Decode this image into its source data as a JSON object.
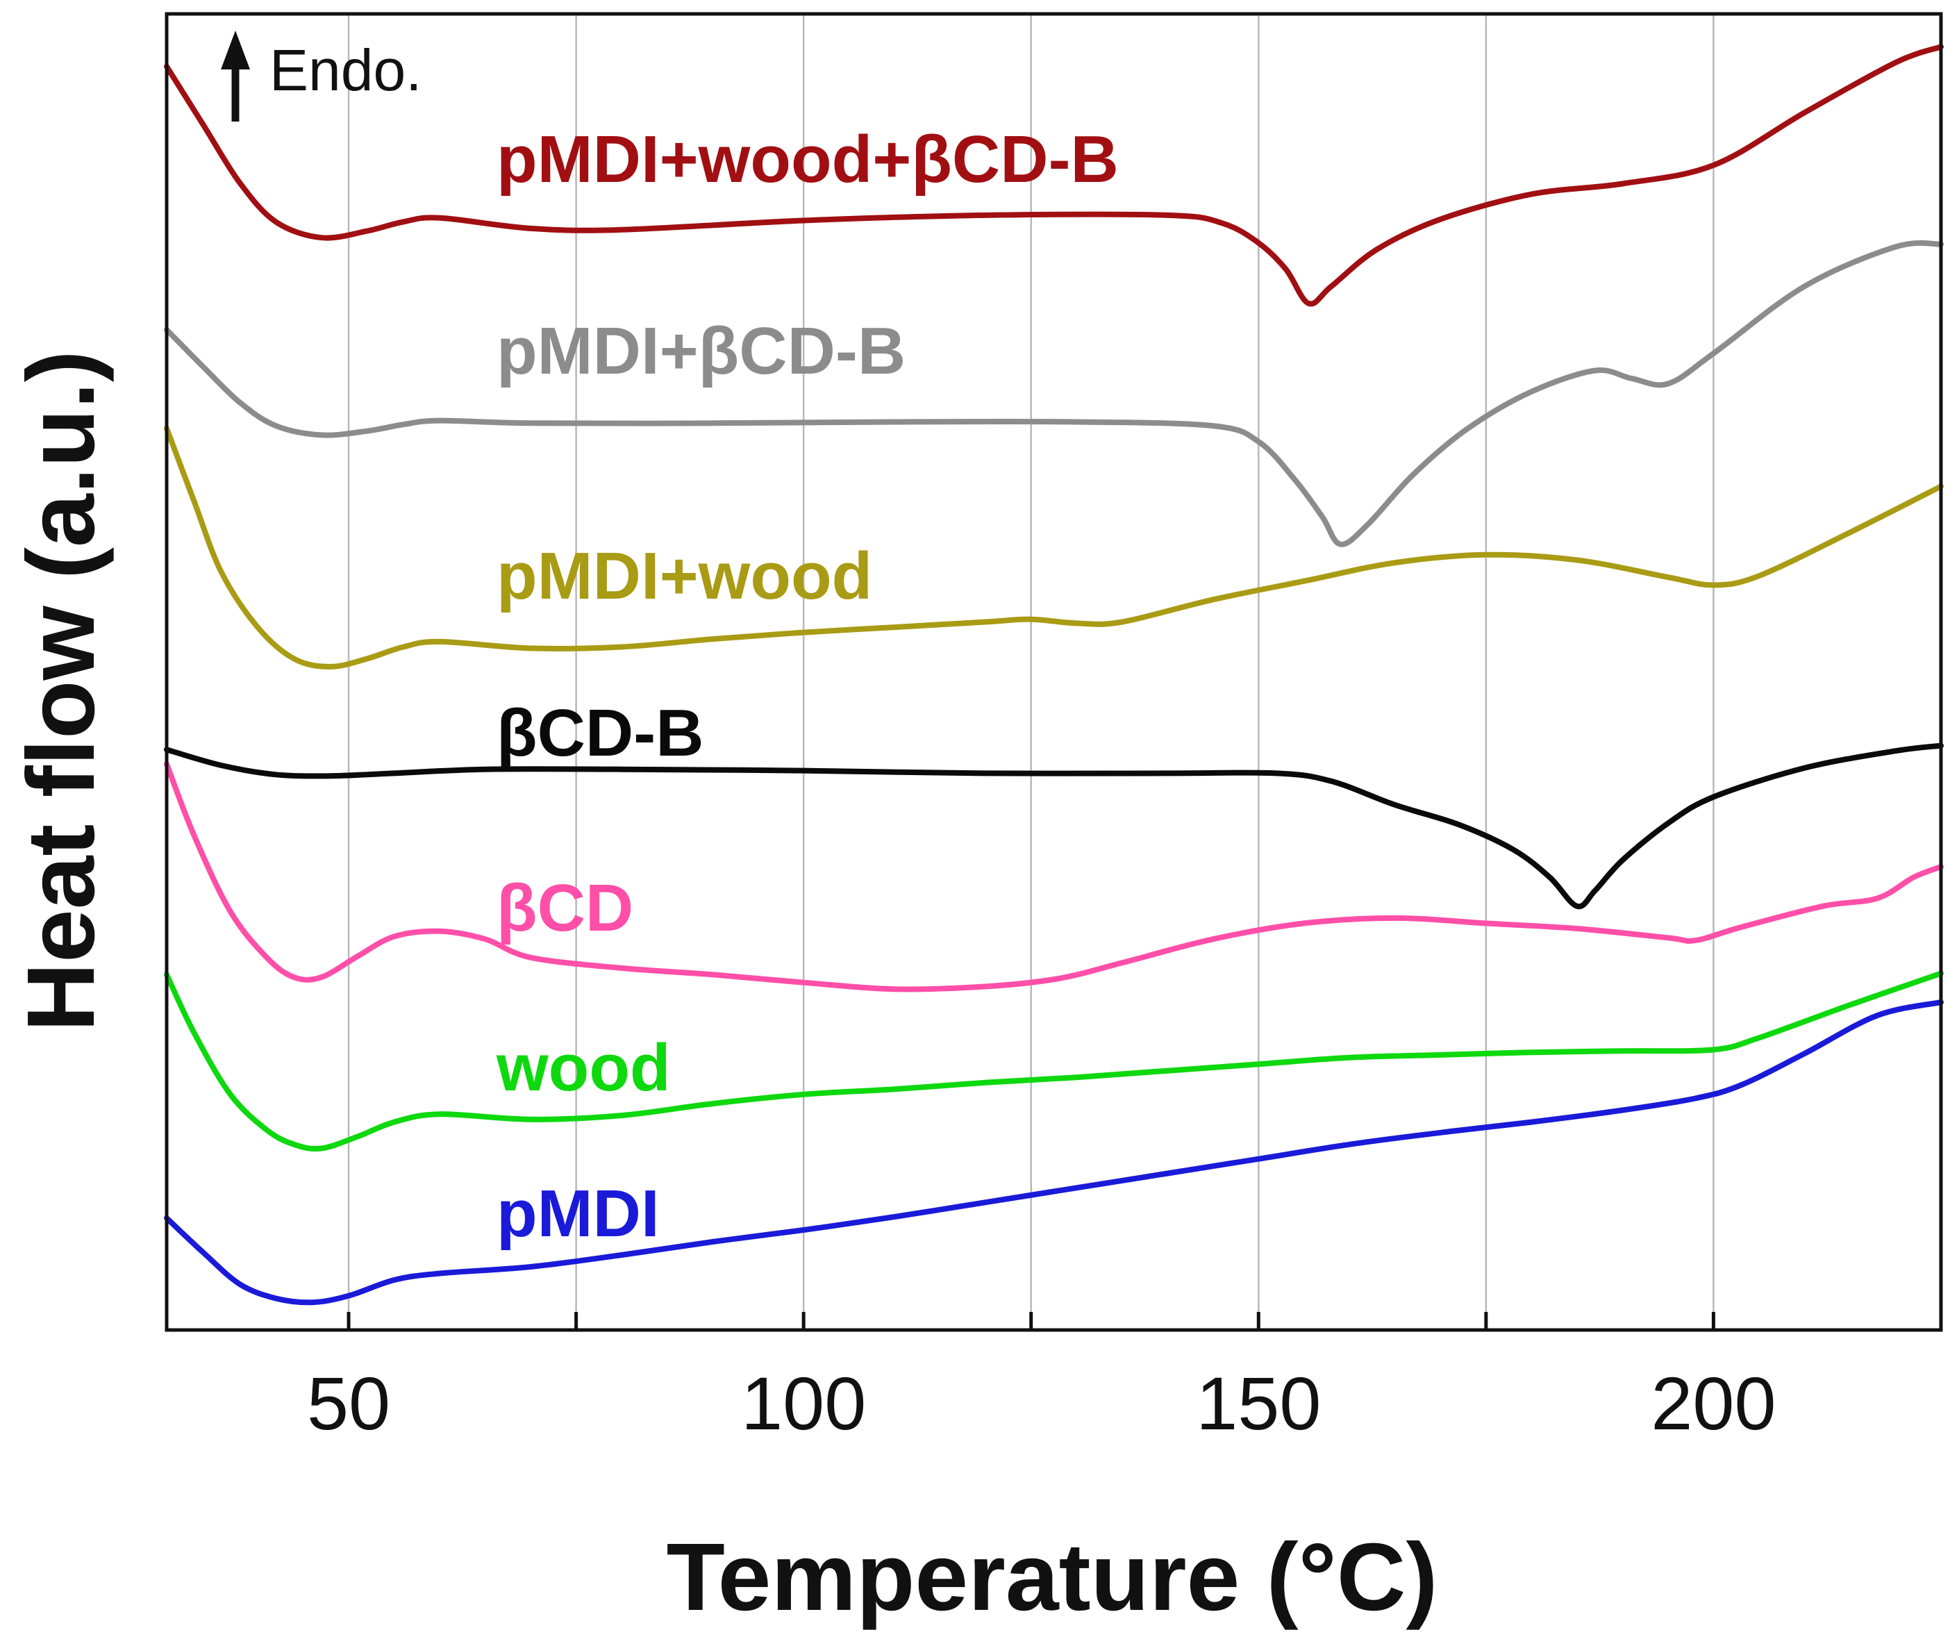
{
  "chart_data": {
    "type": "line",
    "title": "",
    "xlabel": "Temperature (°C)",
    "ylabel": "Heat flow (a.u.)",
    "xlim": [
      30,
      225
    ],
    "ylim": [
      0,
      100
    ],
    "x_ticks": [
      50,
      100,
      150,
      200
    ],
    "x_minor_ticks": [
      75,
      125,
      175
    ],
    "grid": "vertical",
    "annotation": "Endo.",
    "series": [
      {
        "name": "pMDI+wood+βCD-B",
        "color": "#a10f12",
        "points": [
          [
            30,
            96
          ],
          [
            34,
            91.6
          ],
          [
            38,
            87.2
          ],
          [
            42,
            84.2
          ],
          [
            47,
            83
          ],
          [
            52,
            83.5
          ],
          [
            56,
            84.2
          ],
          [
            60,
            84.5
          ],
          [
            70,
            83.7
          ],
          [
            80,
            83.6
          ],
          [
            100,
            84.3
          ],
          [
            120,
            84.7
          ],
          [
            140,
            84.7
          ],
          [
            146,
            84.1
          ],
          [
            150,
            82.6
          ],
          [
            153,
            80.6
          ],
          [
            155.5,
            78
          ],
          [
            158,
            79.3
          ],
          [
            163,
            82.1
          ],
          [
            170,
            84.4
          ],
          [
            180,
            86.3
          ],
          [
            190,
            87.1
          ],
          [
            200,
            88.5
          ],
          [
            210,
            92.5
          ],
          [
            220,
            96.3
          ],
          [
            225,
            97.5
          ]
        ]
      },
      {
        "name": "pMDI+βCD-B",
        "color": "#8c8c8c",
        "points": [
          [
            30,
            76
          ],
          [
            34,
            73.2
          ],
          [
            38,
            70.5
          ],
          [
            42,
            68.7
          ],
          [
            47,
            68
          ],
          [
            52,
            68.3
          ],
          [
            56,
            68.8
          ],
          [
            60,
            69.1
          ],
          [
            70,
            68.9
          ],
          [
            90,
            68.9
          ],
          [
            110,
            69
          ],
          [
            130,
            69
          ],
          [
            145,
            68.7
          ],
          [
            150,
            67.5
          ],
          [
            154,
            64.6
          ],
          [
            157,
            61.8
          ],
          [
            159,
            59.7
          ],
          [
            162,
            61.2
          ],
          [
            167,
            65
          ],
          [
            173,
            68.5
          ],
          [
            180,
            71.3
          ],
          [
            187,
            72.9
          ],
          [
            191,
            72.3
          ],
          [
            195,
            71.9
          ],
          [
            200,
            74.2
          ],
          [
            210,
            79.3
          ],
          [
            220,
            82.3
          ],
          [
            225,
            82.5
          ]
        ]
      },
      {
        "name": "pMDI+wood",
        "color": "#a99b14",
        "points": [
          [
            30,
            68.5
          ],
          [
            33,
            63
          ],
          [
            36,
            57.6
          ],
          [
            40,
            53.4
          ],
          [
            44,
            51
          ],
          [
            48,
            50.4
          ],
          [
            52,
            51
          ],
          [
            56,
            51.9
          ],
          [
            60,
            52.3
          ],
          [
            70,
            51.8
          ],
          [
            80,
            51.9
          ],
          [
            90,
            52.5
          ],
          [
            100,
            53
          ],
          [
            110,
            53.4
          ],
          [
            120,
            53.8
          ],
          [
            125,
            54
          ],
          [
            130,
            53.7
          ],
          [
            135,
            53.8
          ],
          [
            145,
            55.5
          ],
          [
            155,
            56.9
          ],
          [
            165,
            58.3
          ],
          [
            175,
            58.9
          ],
          [
            185,
            58.5
          ],
          [
            195,
            57.2
          ],
          [
            200,
            56.6
          ],
          [
            205,
            57.3
          ],
          [
            215,
            60.6
          ],
          [
            225,
            64.1
          ]
        ]
      },
      {
        "name": "βCD-B",
        "color": "#0a0a0a",
        "points": [
          [
            30,
            44.1
          ],
          [
            36,
            42.9
          ],
          [
            42,
            42.2
          ],
          [
            48,
            42.1
          ],
          [
            55,
            42.3
          ],
          [
            65,
            42.6
          ],
          [
            80,
            42.6
          ],
          [
            100,
            42.5
          ],
          [
            120,
            42.3
          ],
          [
            140,
            42.3
          ],
          [
            152,
            42.3
          ],
          [
            158,
            41.7
          ],
          [
            165,
            39.9
          ],
          [
            172,
            38.4
          ],
          [
            178,
            36.5
          ],
          [
            182,
            34.4
          ],
          [
            185,
            32.2
          ],
          [
            187,
            33.4
          ],
          [
            190,
            35.7
          ],
          [
            195,
            38.5
          ],
          [
            200,
            40.5
          ],
          [
            210,
            42.7
          ],
          [
            220,
            44
          ],
          [
            225,
            44.4
          ]
        ]
      },
      {
        "name": "βCD",
        "color": "#ff4fa8",
        "points": [
          [
            30,
            43
          ],
          [
            33,
            37.6
          ],
          [
            37,
            31.8
          ],
          [
            41,
            28.3
          ],
          [
            44,
            26.8
          ],
          [
            47,
            26.8
          ],
          [
            51,
            28.4
          ],
          [
            55,
            29.9
          ],
          [
            60,
            30.3
          ],
          [
            65,
            29.7
          ],
          [
            70,
            28.3
          ],
          [
            80,
            27.5
          ],
          [
            90,
            27
          ],
          [
            100,
            26.4
          ],
          [
            110,
            25.9
          ],
          [
            120,
            26.1
          ],
          [
            128,
            26.7
          ],
          [
            135,
            27.9
          ],
          [
            145,
            29.7
          ],
          [
            155,
            30.9
          ],
          [
            165,
            31.3
          ],
          [
            175,
            30.9
          ],
          [
            185,
            30.5
          ],
          [
            195,
            29.8
          ],
          [
            198,
            29.6
          ],
          [
            203,
            30.6
          ],
          [
            212,
            32.2
          ],
          [
            218,
            32.8
          ],
          [
            222,
            34.4
          ],
          [
            225,
            35.2
          ]
        ]
      },
      {
        "name": "wood",
        "color": "#0ed80e",
        "points": [
          [
            30,
            27
          ],
          [
            33,
            22.6
          ],
          [
            37,
            17.9
          ],
          [
            41,
            15.2
          ],
          [
            44,
            14.1
          ],
          [
            47,
            13.8
          ],
          [
            51,
            14.7
          ],
          [
            55,
            15.8
          ],
          [
            60,
            16.4
          ],
          [
            70,
            16
          ],
          [
            80,
            16.3
          ],
          [
            90,
            17.2
          ],
          [
            100,
            17.9
          ],
          [
            110,
            18.3
          ],
          [
            120,
            18.8
          ],
          [
            130,
            19.2
          ],
          [
            140,
            19.7
          ],
          [
            150,
            20.2
          ],
          [
            160,
            20.7
          ],
          [
            170,
            20.9
          ],
          [
            180,
            21.1
          ],
          [
            190,
            21.2
          ],
          [
            200,
            21.3
          ],
          [
            205,
            22.2
          ],
          [
            215,
            24.7
          ],
          [
            225,
            27.1
          ]
        ]
      },
      {
        "name": "pMDI",
        "color": "#1a1ad9",
        "points": [
          [
            30,
            8.5
          ],
          [
            34,
            5.9
          ],
          [
            38,
            3.5
          ],
          [
            42,
            2.4
          ],
          [
            46,
            2.1
          ],
          [
            50,
            2.6
          ],
          [
            55,
            3.8
          ],
          [
            60,
            4.3
          ],
          [
            70,
            4.8
          ],
          [
            80,
            5.7
          ],
          [
            90,
            6.7
          ],
          [
            100,
            7.6
          ],
          [
            110,
            8.6
          ],
          [
            120,
            9.7
          ],
          [
            130,
            10.8
          ],
          [
            140,
            11.9
          ],
          [
            150,
            13
          ],
          [
            160,
            14.1
          ],
          [
            170,
            15
          ],
          [
            180,
            15.8
          ],
          [
            190,
            16.7
          ],
          [
            198,
            17.6
          ],
          [
            203,
            18.6
          ],
          [
            210,
            21
          ],
          [
            218,
            23.9
          ],
          [
            225,
            24.9
          ]
        ]
      }
    ]
  }
}
